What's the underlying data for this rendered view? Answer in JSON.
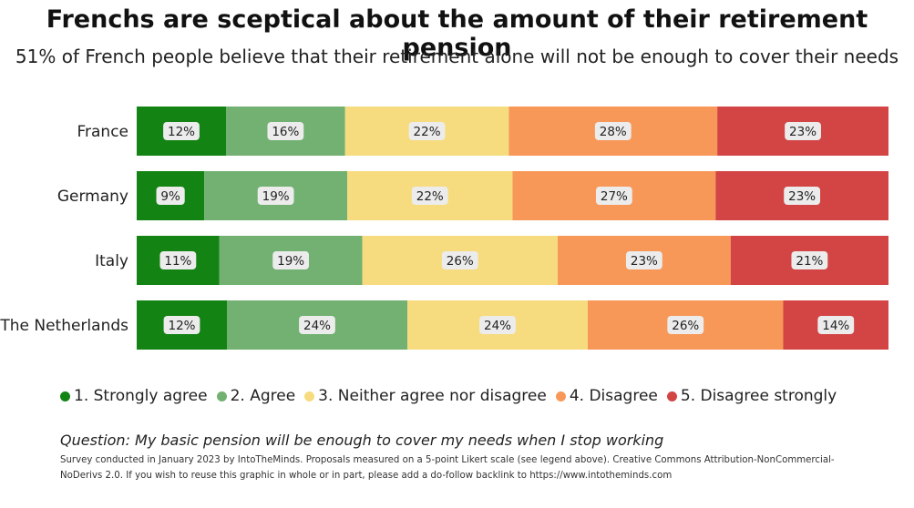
{
  "title": "Frenchs are sceptical about the amount of their retirement pension",
  "subtitle": "51% of French people believe that their retirement alone will not be enough to cover their needs",
  "question": "Question: My basic pension will be enough to cover my needs when I stop working",
  "note": "Survey conducted in January 2023 by IntoTheMinds. Proposals measured on a 5-point Likert scale (see legend above). Creative Commons Attribution-NonCommercial-NoDerivs 2.0. If you wish to reuse this graphic in whole or in part, please add a do-follow backlink to https://www.intotheminds.com",
  "chart_data": {
    "type": "bar",
    "orientation": "horizontal",
    "stacked": "100%",
    "categories": [
      "France",
      "Germany",
      "Italy",
      "The Netherlands"
    ],
    "series": [
      {
        "name": "1. Strongly agree",
        "color": "#138313",
        "values": [
          12,
          9,
          11,
          12
        ],
        "labels": [
          "12%",
          "9%",
          "11%",
          "12%"
        ]
      },
      {
        "name": "2. Agree",
        "color": "#72b172",
        "values": [
          16,
          19,
          19,
          24
        ],
        "labels": [
          "16%",
          "19%",
          "19%",
          "24%"
        ]
      },
      {
        "name": "3. Neither agree nor disagree",
        "color": "#f6dc7e",
        "values": [
          22,
          22,
          26,
          24
        ],
        "labels": [
          "22%",
          "22%",
          "26%",
          "24%"
        ]
      },
      {
        "name": "4. Disagree",
        "color": "#f89858",
        "values": [
          28,
          27,
          23,
          26
        ],
        "labels": [
          "28%",
          "27%",
          "23%",
          "26%"
        ]
      },
      {
        "name": "5. Disagree strongly",
        "color": "#d34545",
        "values": [
          23,
          23,
          21,
          14
        ],
        "labels": [
          "23%",
          "23%",
          "21%",
          "14%"
        ]
      }
    ],
    "legend_position": "bottom"
  }
}
